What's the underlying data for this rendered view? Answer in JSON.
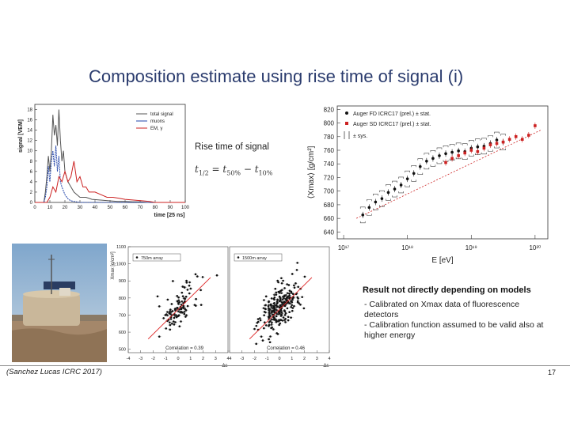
{
  "title": "Composition estimate using rise time of signal (i)",
  "rise_time": {
    "label": "Rise time of signal",
    "formula": {
      "t": "t",
      "sub_half": "1/2",
      "minus": "=",
      "sub50": "50%",
      "sub10": "10%"
    }
  },
  "result": {
    "heading": "Result not directly depending on models",
    "bullets": [
      "- Calibrated on Xmax data of fluorescence detectors",
      "- Calibration function assumed to be valid also at higher energy"
    ]
  },
  "citation": "(Sanchez Lucas ICRC 2017)",
  "page_number": "17",
  "photo": {
    "alt": "surface-detector-tank-photo"
  },
  "chart_data": [
    {
      "id": "signal-trace",
      "type": "line",
      "xlabel": "time [25 ns]",
      "ylabel": "signal [VEM]",
      "xlim": [
        0,
        100
      ],
      "ylim": [
        0,
        19
      ],
      "xticks": [
        0,
        10,
        20,
        30,
        40,
        50,
        60,
        70,
        80,
        90,
        100
      ],
      "yticks": [
        0,
        2,
        4,
        6,
        8,
        10,
        12,
        14,
        16,
        18
      ],
      "legend": [
        "total signal",
        "muons",
        "EM, γ"
      ],
      "series": [
        {
          "name": "total signal",
          "color": "#555555",
          "x": [
            0,
            6,
            7,
            8,
            9,
            10,
            11,
            12,
            13,
            14,
            15,
            16,
            17,
            18,
            19,
            20,
            22,
            24,
            26,
            28,
            30,
            34,
            38,
            42,
            46,
            50,
            55,
            60,
            65,
            70,
            75,
            80,
            90,
            100
          ],
          "y": [
            0,
            0,
            2,
            5,
            9,
            6,
            10,
            17,
            13,
            15,
            11,
            18,
            12,
            8,
            10,
            6,
            4,
            3,
            2,
            1.5,
            1,
            1,
            0.6,
            0.5,
            0.4,
            0.3,
            0.2,
            0.2,
            0.1,
            0.1,
            0,
            0,
            0,
            0
          ]
        },
        {
          "name": "muons",
          "color": "#2244aa",
          "x": [
            0,
            6,
            7,
            8,
            9,
            10,
            11,
            12,
            13,
            14,
            15,
            16,
            17,
            18,
            20,
            22,
            24,
            26,
            30,
            40,
            100
          ],
          "y": [
            0,
            0,
            1,
            3,
            7,
            4,
            8,
            10,
            7,
            11,
            6,
            9,
            4,
            3,
            1.5,
            0.7,
            0.3,
            0.2,
            0,
            0,
            0
          ]
        },
        {
          "name": "EM, γ",
          "color": "#cc2222",
          "x": [
            0,
            8,
            10,
            12,
            14,
            16,
            18,
            20,
            22,
            24,
            26,
            28,
            30,
            32,
            34,
            36,
            38,
            40,
            44,
            48,
            52,
            56,
            60,
            64,
            68,
            72,
            76,
            80,
            100
          ],
          "y": [
            0,
            0,
            1,
            3,
            2,
            5,
            4,
            6,
            4,
            5,
            8,
            4,
            5,
            3,
            3,
            2,
            2,
            2,
            1.5,
            1,
            1,
            0.8,
            0.6,
            0.5,
            0.4,
            0.3,
            0.2,
            0,
            0
          ]
        }
      ]
    },
    {
      "id": "xmax-vs-energy",
      "type": "scatter",
      "xlabel": "E [eV]",
      "ylabel": "⟨Xmax⟩ [g/cm²]",
      "xscale": "log",
      "xlim_log10": [
        16.9,
        20.2
      ],
      "ylim": [
        630,
        825
      ],
      "xtick_labels": [
        "10¹⁷",
        "10¹⁸",
        "10¹⁹",
        "10²⁰"
      ],
      "xticks_log10": [
        17,
        18,
        19,
        20
      ],
      "yticks": [
        640,
        660,
        680,
        700,
        720,
        740,
        760,
        780,
        800,
        820
      ],
      "legend": [
        "Auger FD ICRC17 (prel.) ± stat.",
        "Auger SD ICRC17 (prel.) ± stat.",
        "± sys."
      ],
      "series": [
        {
          "name": "Auger FD ICRC17 (prel.) ± stat.",
          "color": "#111111",
          "x_log10": [
            17.3,
            17.4,
            17.5,
            17.6,
            17.7,
            17.8,
            17.9,
            18.0,
            18.1,
            18.2,
            18.3,
            18.4,
            18.5,
            18.6,
            18.7,
            18.8,
            18.9,
            19.0,
            19.1,
            19.2,
            19.3,
            19.4,
            19.5
          ],
          "y": [
            665,
            676,
            684,
            689,
            698,
            703,
            709,
            718,
            726,
            736,
            744,
            748,
            752,
            755,
            757,
            759,
            758,
            763,
            765,
            766,
            770,
            775,
            772
          ]
        },
        {
          "name": "Auger SD ICRC17 (prel.) ± stat.",
          "color": "#cc2222",
          "x_log10": [
            18.6,
            18.7,
            18.8,
            18.9,
            19.0,
            19.1,
            19.2,
            19.3,
            19.4,
            19.5,
            19.6,
            19.7,
            19.8,
            19.9,
            20.0
          ],
          "y": [
            742,
            748,
            752,
            756,
            760,
            758,
            763,
            768,
            770,
            772,
            776,
            780,
            776,
            782,
            796
          ]
        }
      ]
    },
    {
      "id": "calibration-750m",
      "type": "scatter",
      "ylabel": "Xmax [g/cm²]",
      "xlabel": "Δs",
      "legend": [
        "750m array"
      ],
      "annotation": "Correlation = 0.39",
      "ylim": [
        480,
        1100
      ],
      "xlim": [
        -4,
        4
      ],
      "yticks": [
        500,
        600,
        700,
        800,
        900,
        1000,
        1100
      ],
      "xtick_labels": [
        "-4",
        "-3",
        "-2",
        "-1",
        "0",
        "1",
        "2",
        "3",
        "4"
      ]
    },
    {
      "id": "calibration-1500m",
      "type": "scatter",
      "xlabel": "Δs",
      "legend": [
        "1500m array"
      ],
      "annotation": "Correlation = 0.46",
      "xlim": [
        -4,
        4
      ],
      "xtick_labels": [
        "-4",
        "-3",
        "-2",
        "-1",
        "0",
        "1",
        "2",
        "3",
        "4"
      ]
    }
  ]
}
